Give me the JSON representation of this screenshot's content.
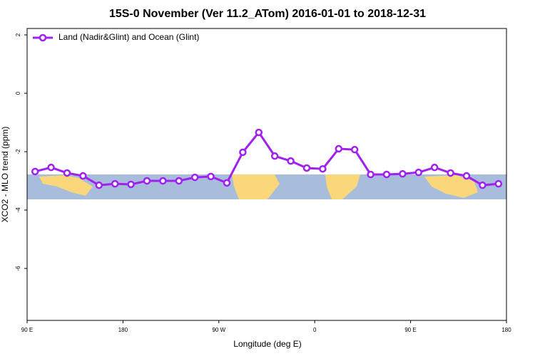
{
  "chart_data": {
    "type": "line",
    "title": "15S-0 November (Ver 11.2_ATom)   2016-01-01 to 2018-12-31",
    "x_label": "Longitude (deg E)",
    "y_label": "XCO2 - MLO trend (ppm)",
    "xlim": [
      90,
      540
    ],
    "ylim": [
      -7.78,
      2.22
    ],
    "xticks": [
      {
        "value": 90,
        "label": "90 E"
      },
      {
        "value": 180,
        "label": "180"
      },
      {
        "value": 270,
        "label": "90 W"
      },
      {
        "value": 360,
        "label": "0"
      },
      {
        "value": 450,
        "label": "90 E"
      },
      {
        "value": 540,
        "label": "180"
      }
    ],
    "yticks": [
      2,
      0,
      -2,
      -4,
      -6
    ],
    "legend_position": "top-left",
    "x": [
      97.5,
      112.5,
      127.5,
      142.5,
      157.5,
      172.5,
      187.5,
      202.5,
      217.5,
      232.5,
      247.5,
      262.5,
      277.5,
      292.5,
      307.5,
      322.5,
      337.5,
      352.5,
      367.5,
      382.5,
      397.5,
      412.5,
      427.5,
      442.5,
      457.5,
      472.5,
      487.5,
      502.5,
      517.5,
      532.5
    ],
    "series": [
      {
        "name": "Land (Nadir&Glint) and Ocean (Glint)",
        "color": "#a020f0",
        "values": [
          -2.68,
          -2.54,
          -2.73,
          -2.83,
          -3.15,
          -3.1,
          -3.12,
          -3.0,
          -3.0,
          -3.0,
          -2.88,
          -2.85,
          -3.07,
          -2.02,
          -1.34,
          -2.15,
          -2.32,
          -2.56,
          -2.59,
          -1.9,
          -1.93,
          -2.78,
          -2.78,
          -2.76,
          -2.71,
          -2.54,
          -2.73,
          -2.83,
          -3.15,
          -3.1
        ]
      }
    ]
  }
}
